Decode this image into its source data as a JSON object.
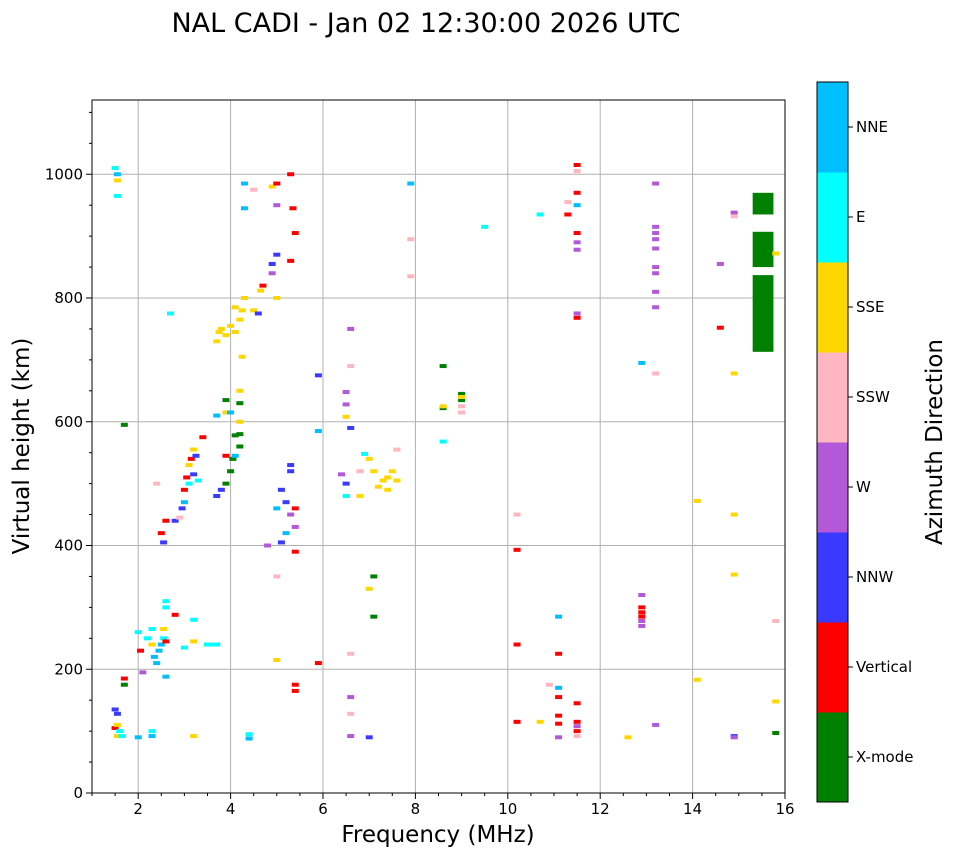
{
  "chart_data": {
    "type": "scatter",
    "title": "NAL CADI - Jan 02 12:30:00 2026 UTC",
    "xlabel": "Frequency (MHz)",
    "ylabel": "Virtual height (km)",
    "xlim": [
      1,
      16
    ],
    "ylim": [
      0,
      1120
    ],
    "xticks": [
      2,
      4,
      6,
      8,
      10,
      12,
      14,
      16
    ],
    "yticks": [
      0,
      200,
      400,
      600,
      800,
      1000
    ],
    "grid": true,
    "colorbar": {
      "label": "Azimuth Direction",
      "categories": [
        {
          "name": "X-mode",
          "color": "#008000"
        },
        {
          "name": "Vertical",
          "color": "#ff0000"
        },
        {
          "name": "NNW",
          "color": "#3a3aff"
        },
        {
          "name": "W",
          "color": "#b358d8"
        },
        {
          "name": "SSW",
          "color": "#ffb6c1"
        },
        {
          "name": "SSE",
          "color": "#ffd700"
        },
        {
          "name": "E",
          "color": "#00ffff"
        },
        {
          "name": "NNE",
          "color": "#00bfff"
        }
      ]
    },
    "points": [
      {
        "f": 1.5,
        "h": 1010,
        "d": "E"
      },
      {
        "f": 1.55,
        "h": 1000,
        "d": "NNE"
      },
      {
        "f": 1.55,
        "h": 965,
        "d": "E"
      },
      {
        "f": 1.55,
        "h": 990,
        "d": "SSE"
      },
      {
        "f": 1.7,
        "h": 595,
        "d": "X-mode"
      },
      {
        "f": 1.5,
        "h": 135,
        "d": "NNW"
      },
      {
        "f": 1.55,
        "h": 128,
        "d": "NNW"
      },
      {
        "f": 1.5,
        "h": 105,
        "d": "Vertical"
      },
      {
        "f": 1.55,
        "h": 110,
        "d": "SSE"
      },
      {
        "f": 1.6,
        "h": 100,
        "d": "E"
      },
      {
        "f": 1.55,
        "h": 92,
        "d": "SSE"
      },
      {
        "f": 1.65,
        "h": 92,
        "d": "E"
      },
      {
        "f": 1.7,
        "h": 185,
        "d": "Vertical"
      },
      {
        "f": 1.7,
        "h": 175,
        "d": "X-mode"
      },
      {
        "f": 2.0,
        "h": 260,
        "d": "E"
      },
      {
        "f": 2.05,
        "h": 230,
        "d": "Vertical"
      },
      {
        "f": 2.1,
        "h": 195,
        "d": "W"
      },
      {
        "f": 2.3,
        "h": 240,
        "d": "SSE"
      },
      {
        "f": 2.35,
        "h": 220,
        "d": "NNE"
      },
      {
        "f": 2.4,
        "h": 210,
        "d": "NNE"
      },
      {
        "f": 2.45,
        "h": 230,
        "d": "NNE"
      },
      {
        "f": 2.5,
        "h": 240,
        "d": "NNE"
      },
      {
        "f": 2.55,
        "h": 250,
        "d": "E"
      },
      {
        "f": 2.6,
        "h": 300,
        "d": "E"
      },
      {
        "f": 2.6,
        "h": 310,
        "d": "E"
      },
      {
        "f": 2.55,
        "h": 265,
        "d": "SSE"
      },
      {
        "f": 2.6,
        "h": 245,
        "d": "Vertical"
      },
      {
        "f": 2.3,
        "h": 265,
        "d": "E"
      },
      {
        "f": 2.2,
        "h": 250,
        "d": "E"
      },
      {
        "f": 2.3,
        "h": 100,
        "d": "E"
      },
      {
        "f": 2.3,
        "h": 92,
        "d": "NNE"
      },
      {
        "f": 2.0,
        "h": 90,
        "d": "NNE"
      },
      {
        "f": 2.6,
        "h": 188,
        "d": "NNE"
      },
      {
        "f": 2.8,
        "h": 288,
        "d": "Vertical"
      },
      {
        "f": 3.0,
        "h": 235,
        "d": "E"
      },
      {
        "f": 3.2,
        "h": 280,
        "d": "E"
      },
      {
        "f": 3.2,
        "h": 245,
        "d": "SSE"
      },
      {
        "f": 3.5,
        "h": 240,
        "d": "E"
      },
      {
        "f": 3.6,
        "h": 240,
        "d": "E"
      },
      {
        "f": 3.7,
        "h": 240,
        "d": "E"
      },
      {
        "f": 3.2,
        "h": 92,
        "d": "SSE"
      },
      {
        "f": 2.5,
        "h": 420,
        "d": "Vertical"
      },
      {
        "f": 2.55,
        "h": 405,
        "d": "NNW"
      },
      {
        "f": 2.6,
        "h": 440,
        "d": "Vertical"
      },
      {
        "f": 2.8,
        "h": 440,
        "d": "NNW"
      },
      {
        "f": 2.9,
        "h": 445,
        "d": "SSW"
      },
      {
        "f": 2.95,
        "h": 460,
        "d": "NNW"
      },
      {
        "f": 3.0,
        "h": 470,
        "d": "NNE"
      },
      {
        "f": 3.0,
        "h": 490,
        "d": "Vertical"
      },
      {
        "f": 3.05,
        "h": 510,
        "d": "Vertical"
      },
      {
        "f": 3.1,
        "h": 500,
        "d": "E"
      },
      {
        "f": 3.1,
        "h": 530,
        "d": "SSE"
      },
      {
        "f": 3.15,
        "h": 540,
        "d": "Vertical"
      },
      {
        "f": 3.2,
        "h": 555,
        "d": "SSE"
      },
      {
        "f": 3.25,
        "h": 545,
        "d": "NNW"
      },
      {
        "f": 3.2,
        "h": 515,
        "d": "NNW"
      },
      {
        "f": 2.4,
        "h": 500,
        "d": "SSW"
      },
      {
        "f": 3.4,
        "h": 575,
        "d": "Vertical"
      },
      {
        "f": 3.3,
        "h": 505,
        "d": "E"
      },
      {
        "f": 3.7,
        "h": 480,
        "d": "NNW"
      },
      {
        "f": 3.8,
        "h": 490,
        "d": "NNW"
      },
      {
        "f": 3.9,
        "h": 500,
        "d": "X-mode"
      },
      {
        "f": 4.0,
        "h": 520,
        "d": "X-mode"
      },
      {
        "f": 4.05,
        "h": 540,
        "d": "X-mode"
      },
      {
        "f": 4.1,
        "h": 545,
        "d": "NNE"
      },
      {
        "f": 4.2,
        "h": 560,
        "d": "X-mode"
      },
      {
        "f": 4.2,
        "h": 580,
        "d": "X-mode"
      },
      {
        "f": 3.9,
        "h": 545,
        "d": "Vertical"
      },
      {
        "f": 3.7,
        "h": 610,
        "d": "NNE"
      },
      {
        "f": 3.9,
        "h": 615,
        "d": "SSE"
      },
      {
        "f": 4.0,
        "h": 615,
        "d": "NNE"
      },
      {
        "f": 4.2,
        "h": 630,
        "d": "X-mode"
      },
      {
        "f": 4.2,
        "h": 650,
        "d": "SSE"
      },
      {
        "f": 4.2,
        "h": 600,
        "d": "SSE"
      },
      {
        "f": 4.1,
        "h": 578,
        "d": "X-mode"
      },
      {
        "f": 3.9,
        "h": 635,
        "d": "X-mode"
      },
      {
        "f": 4.25,
        "h": 705,
        "d": "SSE"
      },
      {
        "f": 3.7,
        "h": 730,
        "d": "SSE"
      },
      {
        "f": 3.75,
        "h": 745,
        "d": "SSE"
      },
      {
        "f": 3.8,
        "h": 750,
        "d": "SSE"
      },
      {
        "f": 3.9,
        "h": 740,
        "d": "SSE"
      },
      {
        "f": 4.0,
        "h": 755,
        "d": "SSE"
      },
      {
        "f": 4.1,
        "h": 745,
        "d": "SSE"
      },
      {
        "f": 4.2,
        "h": 765,
        "d": "SSE"
      },
      {
        "f": 4.25,
        "h": 780,
        "d": "SSE"
      },
      {
        "f": 4.3,
        "h": 800,
        "d": "SSE"
      },
      {
        "f": 4.1,
        "h": 785,
        "d": "SSE"
      },
      {
        "f": 4.5,
        "h": 780,
        "d": "SSE"
      },
      {
        "f": 4.6,
        "h": 775,
        "d": "NNW"
      },
      {
        "f": 4.65,
        "h": 812,
        "d": "SSE"
      },
      {
        "f": 4.7,
        "h": 820,
        "d": "Vertical"
      },
      {
        "f": 4.9,
        "h": 840,
        "d": "W"
      },
      {
        "f": 4.9,
        "h": 855,
        "d": "NNW"
      },
      {
        "f": 5.0,
        "h": 800,
        "d": "SSE"
      },
      {
        "f": 5.0,
        "h": 870,
        "d": "NNW"
      },
      {
        "f": 2.7,
        "h": 775,
        "d": "E"
      },
      {
        "f": 4.3,
        "h": 985,
        "d": "NNE"
      },
      {
        "f": 4.5,
        "h": 975,
        "d": "SSW"
      },
      {
        "f": 4.9,
        "h": 980,
        "d": "SSE"
      },
      {
        "f": 5.0,
        "h": 985,
        "d": "Vertical"
      },
      {
        "f": 5.0,
        "h": 950,
        "d": "W"
      },
      {
        "f": 5.3,
        "h": 1000,
        "d": "Vertical"
      },
      {
        "f": 5.35,
        "h": 945,
        "d": "Vertical"
      },
      {
        "f": 5.4,
        "h": 905,
        "d": "Vertical"
      },
      {
        "f": 5.3,
        "h": 860,
        "d": "Vertical"
      },
      {
        "f": 4.3,
        "h": 945,
        "d": "NNE"
      },
      {
        "f": 4.8,
        "h": 400,
        "d": "W"
      },
      {
        "f": 5.0,
        "h": 460,
        "d": "NNE"
      },
      {
        "f": 5.1,
        "h": 490,
        "d": "NNW"
      },
      {
        "f": 5.2,
        "h": 470,
        "d": "NNW"
      },
      {
        "f": 5.3,
        "h": 520,
        "d": "NNW"
      },
      {
        "f": 5.4,
        "h": 460,
        "d": "Vertical"
      },
      {
        "f": 5.4,
        "h": 430,
        "d": "W"
      },
      {
        "f": 5.3,
        "h": 450,
        "d": "W"
      },
      {
        "f": 5.2,
        "h": 420,
        "d": "NNE"
      },
      {
        "f": 5.1,
        "h": 405,
        "d": "NNW"
      },
      {
        "f": 5.4,
        "h": 390,
        "d": "Vertical"
      },
      {
        "f": 5.3,
        "h": 530,
        "d": "NNW"
      },
      {
        "f": 5.0,
        "h": 350,
        "d": "SSW"
      },
      {
        "f": 5.0,
        "h": 215,
        "d": "SSE"
      },
      {
        "f": 5.4,
        "h": 175,
        "d": "Vertical"
      },
      {
        "f": 5.4,
        "h": 165,
        "d": "Vertical"
      },
      {
        "f": 5.9,
        "h": 210,
        "d": "Vertical"
      },
      {
        "f": 4.4,
        "h": 95,
        "d": "E"
      },
      {
        "f": 4.4,
        "h": 88,
        "d": "NNE"
      },
      {
        "f": 5.9,
        "h": 675,
        "d": "NNW"
      },
      {
        "f": 5.9,
        "h": 585,
        "d": "NNE"
      },
      {
        "f": 6.4,
        "h": 515,
        "d": "W"
      },
      {
        "f": 6.5,
        "h": 500,
        "d": "NNW"
      },
      {
        "f": 6.5,
        "h": 480,
        "d": "E"
      },
      {
        "f": 6.5,
        "h": 608,
        "d": "SSE"
      },
      {
        "f": 6.5,
        "h": 628,
        "d": "W"
      },
      {
        "f": 6.5,
        "h": 648,
        "d": "W"
      },
      {
        "f": 6.6,
        "h": 590,
        "d": "NNW"
      },
      {
        "f": 6.6,
        "h": 690,
        "d": "SSW"
      },
      {
        "f": 6.6,
        "h": 750,
        "d": "W"
      },
      {
        "f": 6.8,
        "h": 520,
        "d": "SSW"
      },
      {
        "f": 6.9,
        "h": 548,
        "d": "E"
      },
      {
        "f": 7.0,
        "h": 540,
        "d": "SSE"
      },
      {
        "f": 7.1,
        "h": 520,
        "d": "SSE"
      },
      {
        "f": 7.2,
        "h": 495,
        "d": "SSE"
      },
      {
        "f": 7.3,
        "h": 505,
        "d": "SSE"
      },
      {
        "f": 7.4,
        "h": 510,
        "d": "SSE"
      },
      {
        "f": 7.4,
        "h": 490,
        "d": "SSE"
      },
      {
        "f": 7.6,
        "h": 505,
        "d": "SSE"
      },
      {
        "f": 7.5,
        "h": 520,
        "d": "SSE"
      },
      {
        "f": 6.8,
        "h": 480,
        "d": "SSE"
      },
      {
        "f": 7.0,
        "h": 330,
        "d": "SSE"
      },
      {
        "f": 7.1,
        "h": 285,
        "d": "X-mode"
      },
      {
        "f": 7.1,
        "h": 350,
        "d": "X-mode"
      },
      {
        "f": 6.6,
        "h": 225,
        "d": "SSW"
      },
      {
        "f": 6.6,
        "h": 155,
        "d": "W"
      },
      {
        "f": 6.6,
        "h": 128,
        "d": "SSW"
      },
      {
        "f": 6.6,
        "h": 92,
        "d": "W"
      },
      {
        "f": 7.0,
        "h": 90,
        "d": "NNW"
      },
      {
        "f": 7.6,
        "h": 555,
        "d": "SSW"
      },
      {
        "f": 7.9,
        "h": 985,
        "d": "NNE"
      },
      {
        "f": 7.9,
        "h": 895,
        "d": "SSW"
      },
      {
        "f": 7.9,
        "h": 835,
        "d": "SSW"
      },
      {
        "f": 8.6,
        "h": 690,
        "d": "X-mode"
      },
      {
        "f": 8.6,
        "h": 622,
        "d": "X-mode"
      },
      {
        "f": 8.6,
        "h": 625,
        "d": "SSE"
      },
      {
        "f": 8.6,
        "h": 568,
        "d": "E"
      },
      {
        "f": 9.0,
        "h": 645,
        "d": "X-mode"
      },
      {
        "f": 9.0,
        "h": 635,
        "d": "X-mode"
      },
      {
        "f": 9.0,
        "h": 640,
        "d": "SSE"
      },
      {
        "f": 9.0,
        "h": 625,
        "d": "SSW"
      },
      {
        "f": 9.0,
        "h": 615,
        "d": "SSW"
      },
      {
        "f": 9.5,
        "h": 915,
        "d": "E"
      },
      {
        "f": 10.2,
        "h": 450,
        "d": "SSW"
      },
      {
        "f": 10.2,
        "h": 393,
        "d": "Vertical"
      },
      {
        "f": 10.2,
        "h": 240,
        "d": "Vertical"
      },
      {
        "f": 10.2,
        "h": 115,
        "d": "Vertical"
      },
      {
        "f": 10.7,
        "h": 935,
        "d": "E"
      },
      {
        "f": 10.7,
        "h": 115,
        "d": "SSE"
      },
      {
        "f": 10.9,
        "h": 175,
        "d": "SSW"
      },
      {
        "f": 11.1,
        "h": 285,
        "d": "NNE"
      },
      {
        "f": 11.1,
        "h": 225,
        "d": "Vertical"
      },
      {
        "f": 11.1,
        "h": 170,
        "d": "NNE"
      },
      {
        "f": 11.1,
        "h": 155,
        "d": "Vertical"
      },
      {
        "f": 11.1,
        "h": 125,
        "d": "Vertical"
      },
      {
        "f": 11.1,
        "h": 112,
        "d": "Vertical"
      },
      {
        "f": 11.1,
        "h": 90,
        "d": "W"
      },
      {
        "f": 11.3,
        "h": 935,
        "d": "Vertical"
      },
      {
        "f": 11.3,
        "h": 955,
        "d": "SSW"
      },
      {
        "f": 11.5,
        "h": 1015,
        "d": "Vertical"
      },
      {
        "f": 11.5,
        "h": 1005,
        "d": "SSW"
      },
      {
        "f": 11.5,
        "h": 970,
        "d": "Vertical"
      },
      {
        "f": 11.5,
        "h": 950,
        "d": "NNE"
      },
      {
        "f": 11.5,
        "h": 905,
        "d": "Vertical"
      },
      {
        "f": 11.5,
        "h": 890,
        "d": "W"
      },
      {
        "f": 11.5,
        "h": 878,
        "d": "W"
      },
      {
        "f": 11.5,
        "h": 775,
        "d": "W"
      },
      {
        "f": 11.5,
        "h": 768,
        "d": "Vertical"
      },
      {
        "f": 11.5,
        "h": 145,
        "d": "Vertical"
      },
      {
        "f": 11.5,
        "h": 115,
        "d": "Vertical"
      },
      {
        "f": 11.5,
        "h": 108,
        "d": "W"
      },
      {
        "f": 11.5,
        "h": 100,
        "d": "Vertical"
      },
      {
        "f": 11.5,
        "h": 92,
        "d": "SSW"
      },
      {
        "f": 12.6,
        "h": 90,
        "d": "SSE"
      },
      {
        "f": 12.9,
        "h": 695,
        "d": "NNE"
      },
      {
        "f": 12.9,
        "h": 320,
        "d": "W"
      },
      {
        "f": 12.9,
        "h": 300,
        "d": "Vertical"
      },
      {
        "f": 12.9,
        "h": 292,
        "d": "Vertical"
      },
      {
        "f": 12.9,
        "h": 285,
        "d": "Vertical"
      },
      {
        "f": 12.9,
        "h": 278,
        "d": "W"
      },
      {
        "f": 12.9,
        "h": 270,
        "d": "W"
      },
      {
        "f": 13.2,
        "h": 985,
        "d": "W"
      },
      {
        "f": 13.2,
        "h": 915,
        "d": "W"
      },
      {
        "f": 13.2,
        "h": 905,
        "d": "W"
      },
      {
        "f": 13.2,
        "h": 895,
        "d": "W"
      },
      {
        "f": 13.2,
        "h": 880,
        "d": "W"
      },
      {
        "f": 13.2,
        "h": 850,
        "d": "W"
      },
      {
        "f": 13.2,
        "h": 840,
        "d": "W"
      },
      {
        "f": 13.2,
        "h": 810,
        "d": "W"
      },
      {
        "f": 13.2,
        "h": 785,
        "d": "W"
      },
      {
        "f": 13.2,
        "h": 678,
        "d": "SSW"
      },
      {
        "f": 13.2,
        "h": 110,
        "d": "W"
      },
      {
        "f": 14.1,
        "h": 472,
        "d": "SSE"
      },
      {
        "f": 14.1,
        "h": 183,
        "d": "SSE"
      },
      {
        "f": 14.6,
        "h": 855,
        "d": "W"
      },
      {
        "f": 14.6,
        "h": 752,
        "d": "Vertical"
      },
      {
        "f": 14.9,
        "h": 938,
        "d": "W"
      },
      {
        "f": 14.9,
        "h": 932,
        "d": "SSW"
      },
      {
        "f": 14.9,
        "h": 678,
        "d": "SSE"
      },
      {
        "f": 14.9,
        "h": 450,
        "d": "SSE"
      },
      {
        "f": 14.9,
        "h": 353,
        "d": "SSE"
      },
      {
        "f": 14.9,
        "h": 92,
        "d": "NNW"
      },
      {
        "f": 14.9,
        "h": 90,
        "d": "W"
      },
      {
        "f": 15.8,
        "h": 872,
        "d": "SSE"
      },
      {
        "f": 15.8,
        "h": 278,
        "d": "SSW"
      },
      {
        "f": 15.8,
        "h": 148,
        "d": "SSE"
      },
      {
        "f": 15.8,
        "h": 97,
        "d": "X-mode"
      }
    ],
    "blocks": [
      {
        "f0": 15.3,
        "f1": 15.75,
        "h0": 935,
        "h1": 970,
        "d": "X-mode"
      },
      {
        "f0": 15.3,
        "f1": 15.75,
        "h0": 850,
        "h1": 907,
        "d": "X-mode"
      },
      {
        "f0": 15.3,
        "f1": 15.75,
        "h0": 713,
        "h1": 837,
        "d": "X-mode"
      }
    ]
  }
}
